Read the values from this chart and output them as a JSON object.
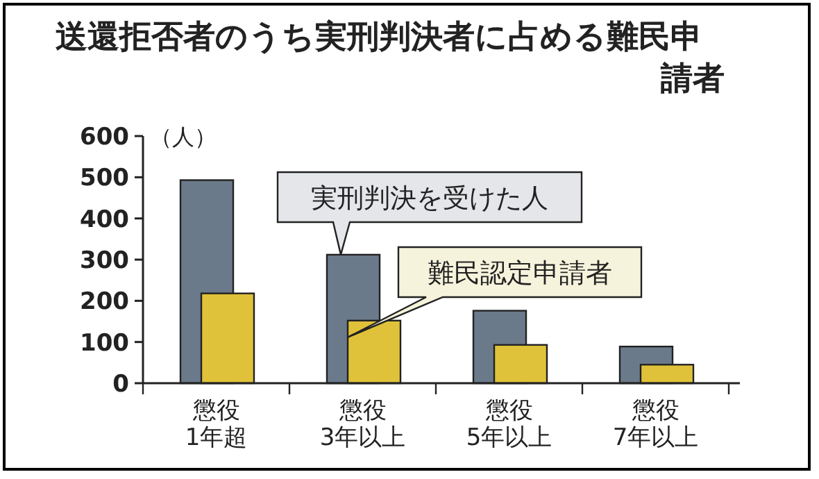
{
  "chart_data": {
    "type": "bar",
    "title": "送還拒否者のうち実刑判決者に占める難民申請者",
    "ylabel": "（人）",
    "categories": [
      "懲役\n1年超",
      "懲役\n3年以上",
      "懲役\n5年以上",
      "懲役\n7年以上"
    ],
    "series": [
      {
        "name": "実刑判決を受けた人",
        "color": "#6b7a8a",
        "values": [
          493,
          312,
          176,
          89
        ]
      },
      {
        "name": "難民認定申請者",
        "color": "#e0c23a",
        "values": [
          218,
          152,
          93,
          45
        ]
      }
    ],
    "ylim": [
      0,
      600
    ],
    "yticks": [
      0,
      100,
      200,
      300,
      400,
      500,
      600
    ]
  }
}
